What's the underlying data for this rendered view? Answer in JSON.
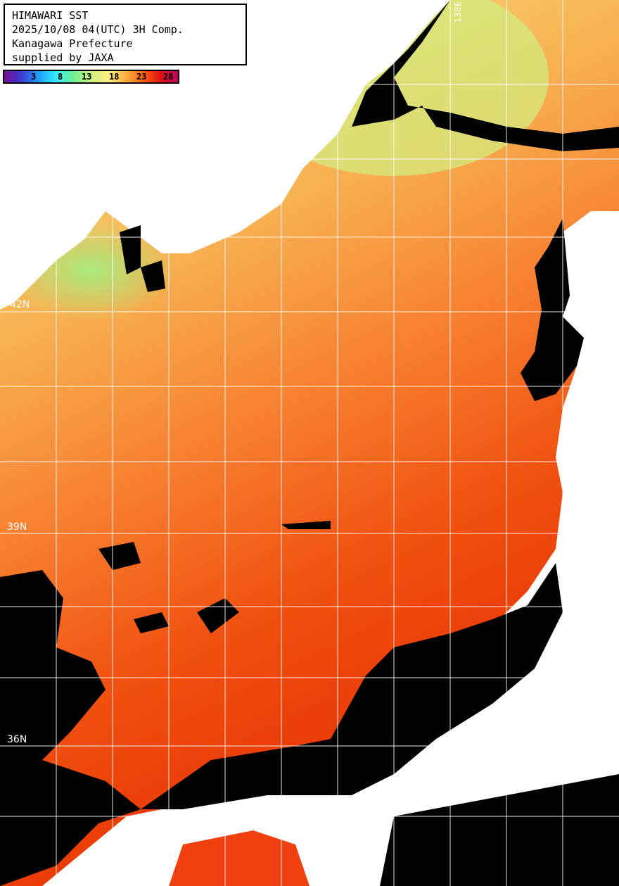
{
  "header": {
    "lines": [
      "HIMAWARI SST",
      "2025/10/08 04(UTC) 3H Comp.",
      "Kanagawa Prefecture",
      "supplied by JAXA"
    ]
  },
  "colorbar": {
    "ticks": [
      "3",
      "8",
      "13",
      "18",
      "23",
      "28"
    ],
    "colors": [
      "#7a1090",
      "#3a3ad0",
      "#20a0ff",
      "#30f0ff",
      "#70f090",
      "#fff080",
      "#ffb040",
      "#ff6010",
      "#e01010",
      "#c00060"
    ]
  },
  "grid_labels": {
    "lat": [
      "42N",
      "39N",
      "36N"
    ],
    "lon": [
      "138E"
    ]
  },
  "colors": {
    "land": "#ffffff",
    "cloud": "#000000",
    "grid": "#ffffff"
  }
}
